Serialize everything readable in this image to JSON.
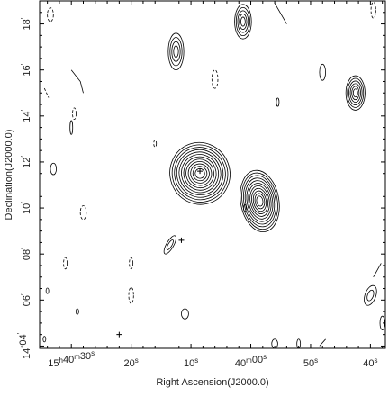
{
  "chart_data": {
    "type": "contour",
    "xlabel": "Right Ascension(J2000.0)",
    "ylabel": "Declination(J2000.0)",
    "x_ticks": [
      {
        "label": "15h40m30s",
        "ra_sec": 30
      },
      {
        "label": "20s",
        "ra_sec": 20
      },
      {
        "label": "10s",
        "ra_sec": 10
      },
      {
        "label": "40m00s",
        "ra_sec": 0
      },
      {
        "label": "50s",
        "ra_sec": -10
      },
      {
        "label": "40s",
        "ra_sec": -20
      }
    ],
    "y_ticks": [
      {
        "label": "14°04′",
        "dec_arcmin": 4
      },
      {
        "label": "06′",
        "dec_arcmin": 6
      },
      {
        "label": "08′",
        "dec_arcmin": 8
      },
      {
        "label": "10′",
        "dec_arcmin": 10
      },
      {
        "label": "12′",
        "dec_arcmin": 12
      },
      {
        "label": "14′",
        "dec_arcmin": 14
      },
      {
        "label": "16′",
        "dec_arcmin": 16
      },
      {
        "label": "18′",
        "dec_arcmin": 18
      }
    ],
    "xlim": [
      35.3,
      -22.5
    ],
    "ylim": [
      3.9,
      19.0
    ],
    "sources": [
      {
        "ra": 8.5,
        "dec": 11.5,
        "rx": 5.0,
        "ry": 1.35,
        "rot": -20,
        "levels": 12,
        "dashed": false
      },
      {
        "ra": -1.5,
        "dec": 10.3,
        "rx": 3.2,
        "ry": 1.35,
        "rot": -10,
        "levels": 11,
        "dashed": false
      },
      {
        "ra": -17.5,
        "dec": 15.0,
        "rx": 1.6,
        "ry": 0.75,
        "rot": 0,
        "levels": 6,
        "dashed": false
      },
      {
        "ra": 12.5,
        "dec": 16.8,
        "rx": 1.3,
        "ry": 0.8,
        "rot": 0,
        "levels": 4,
        "dashed": false
      },
      {
        "ra": 1.3,
        "dec": 18.1,
        "rx": 1.4,
        "ry": 0.75,
        "rot": 0,
        "levels": 5,
        "dashed": false
      },
      {
        "ra": 13.5,
        "dec": 8.4,
        "rx": 0.6,
        "ry": 0.45,
        "rot": 30,
        "levels": 2,
        "dashed": false
      },
      {
        "ra": -20.0,
        "dec": 6.2,
        "rx": 0.9,
        "ry": 0.45,
        "rot": 20,
        "levels": 2,
        "dashed": false
      },
      {
        "ra": 11.0,
        "dec": 5.4,
        "rx": 0.6,
        "ry": 0.22,
        "rot": 0,
        "levels": 1,
        "dashed": false
      },
      {
        "ra": -12.0,
        "dec": 15.9,
        "rx": 0.5,
        "ry": 0.35,
        "rot": 0,
        "levels": 1,
        "dashed": false
      },
      {
        "ra": 33.0,
        "dec": 11.7,
        "rx": 0.5,
        "ry": 0.25,
        "rot": 0,
        "levels": 1,
        "dashed": false
      },
      {
        "ra": 30.0,
        "dec": 13.5,
        "rx": 0.2,
        "ry": 0.3,
        "rot": 0,
        "levels": 1,
        "dashed": false
      },
      {
        "ra": 33.5,
        "dec": 18.4,
        "rx": 0.5,
        "ry": 0.3,
        "rot": 0,
        "levels": 1,
        "dashed": true
      },
      {
        "ra": 6.0,
        "dec": 15.6,
        "rx": 0.5,
        "ry": 0.4,
        "rot": 0,
        "levels": 1,
        "dashed": true
      },
      {
        "ra": 28.0,
        "dec": 9.8,
        "rx": 0.5,
        "ry": 0.3,
        "rot": 0,
        "levels": 1,
        "dashed": true
      },
      {
        "ra": 20.0,
        "dec": 7.6,
        "rx": 0.3,
        "ry": 0.25,
        "rot": 0,
        "levels": 1,
        "dashed": true
      },
      {
        "ra": 31.0,
        "dec": 7.6,
        "rx": 0.3,
        "ry": 0.25,
        "rot": 0,
        "levels": 1,
        "dashed": true
      },
      {
        "ra": 20.0,
        "dec": 6.2,
        "rx": 0.4,
        "ry": 0.35,
        "rot": 0,
        "levels": 1,
        "dashed": true
      },
      {
        "ra": -20.5,
        "dec": 18.6,
        "rx": 0.4,
        "ry": 0.35,
        "rot": 0,
        "levels": 1,
        "dashed": true
      },
      {
        "ra": 29.5,
        "dec": 14.1,
        "rx": 0.3,
        "ry": 0.25,
        "rot": 0,
        "levels": 1,
        "dashed": true
      },
      {
        "ra": 1.0,
        "dec": 10.0,
        "rx": 0.15,
        "ry": 0.15,
        "rot": 0,
        "levels": 1,
        "dashed": false
      },
      {
        "ra": -4.0,
        "dec": 4.1,
        "rx": 0.5,
        "ry": 0.2,
        "rot": 0,
        "levels": 1,
        "dashed": false
      },
      {
        "ra": -8.0,
        "dec": 4.1,
        "rx": 0.3,
        "ry": 0.2,
        "rot": 0,
        "levels": 1,
        "dashed": false
      },
      {
        "ra": 34.0,
        "dec": 6.4,
        "rx": 0.2,
        "ry": 0.12,
        "rot": 0,
        "levels": 1,
        "dashed": false
      },
      {
        "ra": 34.5,
        "dec": 4.3,
        "rx": 0.2,
        "ry": 0.12,
        "rot": 0,
        "levels": 1,
        "dashed": false
      },
      {
        "ra": 29.0,
        "dec": 5.5,
        "rx": 0.2,
        "ry": 0.12,
        "rot": 0,
        "levels": 1,
        "dashed": false
      },
      {
        "ra": -4.5,
        "dec": 14.6,
        "rx": 0.2,
        "ry": 0.18,
        "rot": 0,
        "levels": 1,
        "dashed": false
      },
      {
        "ra": 16.0,
        "dec": 12.8,
        "rx": 0.15,
        "ry": 0.15,
        "rot": 0,
        "levels": 1,
        "dashed": true
      },
      {
        "ra": -22.0,
        "dec": 5.0,
        "rx": 0.4,
        "ry": 0.3,
        "rot": 0,
        "levels": 1,
        "dashed": false
      }
    ],
    "open_segments": [
      {
        "points": [
          [
            30.0,
            16.0
          ],
          [
            28.5,
            15.5
          ],
          [
            28.0,
            15.0
          ]
        ],
        "dashed": false
      },
      {
        "points": [
          [
            34.5,
            15.2
          ],
          [
            33.8,
            14.8
          ]
        ],
        "dashed": true
      },
      {
        "points": [
          [
            -12.5,
            4.3
          ],
          [
            -11.5,
            4.0
          ]
        ],
        "dashed": false
      },
      {
        "points": [
          [
            -20.5,
            7.0
          ],
          [
            -21.8,
            7.6
          ]
        ],
        "dashed": false
      },
      {
        "points": [
          [
            -6.0,
            18.0
          ],
          [
            -4.0,
            18.9
          ]
        ],
        "dashed": false
      }
    ],
    "markers": [
      {
        "ra": 8.5,
        "dec": 11.6,
        "symbol": "+"
      },
      {
        "ra": 22.0,
        "dec": 4.5,
        "symbol": "+"
      },
      {
        "ra": 11.6,
        "dec": 8.6,
        "symbol": "+"
      }
    ]
  }
}
